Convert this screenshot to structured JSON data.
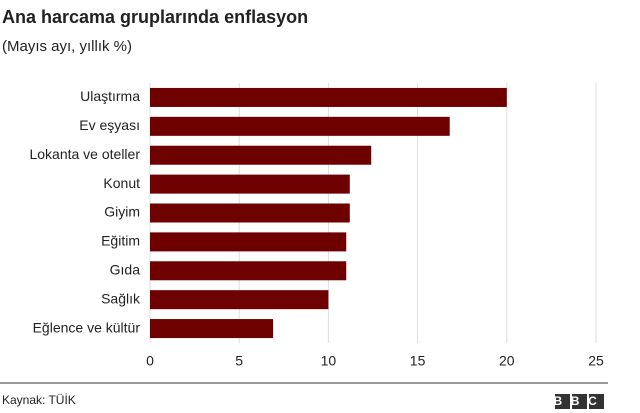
{
  "chart_data": {
    "type": "hbar",
    "title": "Ana harcama gruplarında enflasyon",
    "subtitle": "(Mayıs ayı, yıllık %)",
    "categories": [
      "Ulaştırma",
      "Ev eşyası",
      "Lokanta ve oteller",
      "Konut",
      "Giyim",
      "Eğitim",
      "Gıda",
      "Sağlık",
      "Eğlence ve kültür"
    ],
    "values": [
      20.0,
      16.8,
      12.4,
      11.2,
      11.2,
      11.0,
      11.0,
      10.0,
      6.9
    ],
    "color": "#6e0000",
    "xlim": [
      0,
      25
    ],
    "xticks": [
      0,
      5,
      10,
      15,
      20,
      25
    ],
    "grid": true,
    "source": "Kaynak: TÜİK",
    "logo": "BBC"
  }
}
